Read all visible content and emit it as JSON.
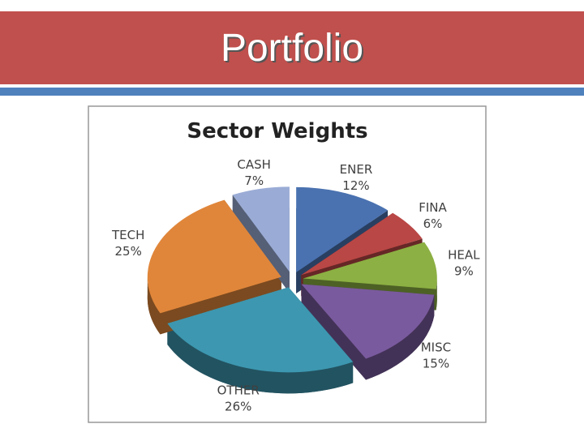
{
  "slide_title": "Portfolio",
  "chart_data": {
    "type": "pie",
    "title": "Sector Weights",
    "categories": [
      "ENER",
      "FINA",
      "HEAL",
      "MISC",
      "OTHER",
      "TECH",
      "CASH"
    ],
    "values": [
      12,
      6,
      9,
      15,
      26,
      25,
      7
    ],
    "value_labels": [
      "12%",
      "6%",
      "9%",
      "15%",
      "26%",
      "25%",
      "7%"
    ],
    "colors": [
      "#4a72b0",
      "#b94745",
      "#8cb043",
      "#7a5a9e",
      "#3d97b0",
      "#e0863a",
      "#9aacd6"
    ]
  }
}
